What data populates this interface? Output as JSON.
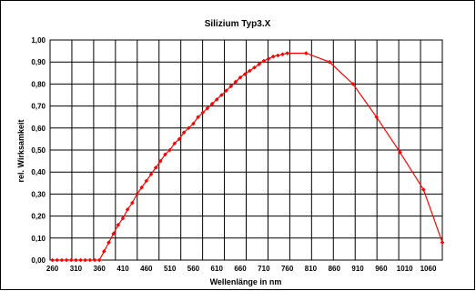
{
  "chart_data": {
    "type": "line",
    "title": "Silizium Typ3.X",
    "xlabel": "Wellenlänge in nm",
    "ylabel": "rel. Wirksamkeit",
    "xlim": [
      255,
      1090
    ],
    "ylim": [
      0,
      1.0
    ],
    "x_tick_values": [
      260,
      310,
      360,
      410,
      460,
      510,
      560,
      610,
      660,
      710,
      760,
      810,
      860,
      910,
      960,
      1010,
      1060
    ],
    "x_tick_labels": [
      "260",
      "310",
      "360",
      "410",
      "460",
      "510",
      "560",
      "610",
      "660",
      "710",
      "760",
      "810",
      "860",
      "910",
      "960",
      "1010",
      "1060"
    ],
    "y_tick_values": [
      0,
      0.1,
      0.2,
      0.3,
      0.4,
      0.5,
      0.6,
      0.7,
      0.8,
      0.9,
      1.0
    ],
    "y_tick_labels": [
      "0,00",
      "0,10",
      "0,20",
      "0,30",
      "0,40",
      "0,50",
      "0,60",
      "0,70",
      "0,80",
      "0,90",
      "1,00"
    ],
    "x_grid_count": 18,
    "grid": true,
    "color": "#ff0000",
    "series": [
      {
        "x": [
          260,
          270,
          280,
          290,
          300,
          310,
          320,
          330,
          340,
          350,
          360,
          370,
          380,
          390,
          400,
          410,
          420,
          430,
          440,
          450,
          460,
          470,
          480,
          490,
          500,
          510,
          520,
          530,
          540,
          550,
          560,
          570,
          580,
          590,
          600,
          610,
          620,
          630,
          640,
          650,
          660,
          670,
          680,
          690,
          700,
          710,
          720,
          730,
          740,
          750,
          760,
          800,
          850,
          900,
          950,
          1000,
          1050,
          1090
        ],
        "values": [
          0,
          0,
          0,
          0,
          0,
          0,
          0,
          0,
          0,
          0,
          0,
          0.04,
          0.08,
          0.12,
          0.16,
          0.19,
          0.23,
          0.26,
          0.3,
          0.33,
          0.36,
          0.39,
          0.42,
          0.45,
          0.48,
          0.5,
          0.53,
          0.55,
          0.58,
          0.6,
          0.62,
          0.65,
          0.67,
          0.69,
          0.71,
          0.73,
          0.75,
          0.77,
          0.79,
          0.81,
          0.83,
          0.845,
          0.86,
          0.875,
          0.89,
          0.905,
          0.915,
          0.925,
          0.93,
          0.935,
          0.94,
          0.94,
          0.9,
          0.8,
          0.65,
          0.49,
          0.32,
          0.08
        ]
      }
    ]
  }
}
